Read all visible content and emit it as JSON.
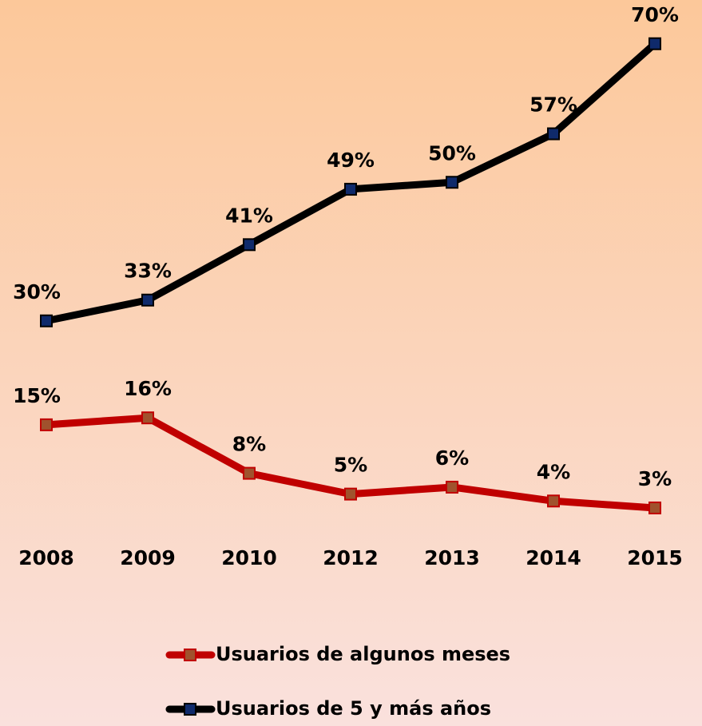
{
  "chart_data": {
    "type": "line",
    "categories": [
      "2008",
      "2009",
      "2010",
      "2012",
      "2013",
      "2014",
      "2015"
    ],
    "series": [
      {
        "name": "Usuarios de algunos meses",
        "color": "#c00000",
        "marker_color": "#a0522d",
        "values": [
          15,
          16,
          8,
          5,
          6,
          4,
          3
        ],
        "value_labels": [
          "15%",
          "16%",
          "8%",
          "5%",
          "6%",
          "4%",
          "3%"
        ]
      },
      {
        "name": "Usuarios de 5 y más años",
        "color": "#000000",
        "marker_color": "#0f2a6b",
        "values": [
          30,
          33,
          41,
          49,
          50,
          57,
          70
        ],
        "value_labels": [
          "30%",
          "33%",
          "41%",
          "49%",
          "50%",
          "57%",
          "70%"
        ]
      }
    ],
    "legend": "bottom"
  }
}
